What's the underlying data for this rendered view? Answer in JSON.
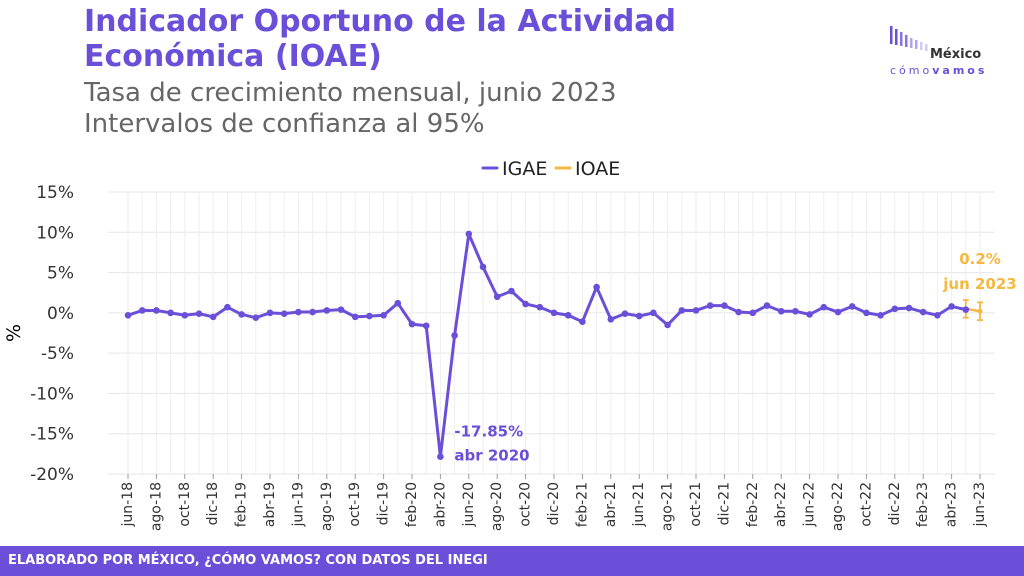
{
  "title": "Indicador Oportuno de la Actividad Económica (IOAE)",
  "subtitle_line1": "Tasa de crecimiento mensual, junio 2023",
  "subtitle_line2": "Intervalos de confianza al 95%",
  "logo": {
    "word": "México",
    "sub_light": "cómo",
    "sub_bold": "vamos"
  },
  "footer": "ELABORADO POR MÉXICO, ¿CÓMO VAMOS? CON DATOS DEL INEGI",
  "colors": {
    "igae": "#6b4fd8",
    "ioae": "#f5b942",
    "brand": "#6b4fd8"
  },
  "chart_data": {
    "type": "line",
    "legend_position": "top",
    "grid": true,
    "ylabel": "%",
    "ylim": [
      -20,
      15
    ],
    "y_ticks": [
      15,
      10,
      5,
      0,
      -5,
      -10,
      -15,
      -20
    ],
    "y_tick_labels": [
      "15%",
      "10%",
      "5%",
      "0%",
      "-5%",
      "-10%",
      "-15%",
      "-20%"
    ],
    "x_tick_labels": [
      "jun-18",
      "ago-18",
      "oct-18",
      "dic-18",
      "feb-19",
      "abr-19",
      "jun-19",
      "ago-19",
      "oct-19",
      "dic-19",
      "feb-20",
      "abr-20",
      "jun-20",
      "ago-20",
      "oct-20",
      "dic-20",
      "feb-21",
      "abr-21",
      "jun-21",
      "ago-21",
      "oct-21",
      "dic-21",
      "feb-22",
      "abr-22",
      "jun-22",
      "ago-22",
      "oct-22",
      "dic-22",
      "feb-23",
      "abr-23",
      "jun-23"
    ],
    "x_start": "2018-06",
    "series": [
      {
        "name": "IGAE",
        "months": [
          "2018-06",
          "2018-07",
          "2018-08",
          "2018-09",
          "2018-10",
          "2018-11",
          "2018-12",
          "2019-01",
          "2019-02",
          "2019-03",
          "2019-04",
          "2019-05",
          "2019-06",
          "2019-07",
          "2019-08",
          "2019-09",
          "2019-10",
          "2019-11",
          "2019-12",
          "2020-01",
          "2020-02",
          "2020-03",
          "2020-04",
          "2020-05",
          "2020-06",
          "2020-07",
          "2020-08",
          "2020-09",
          "2020-10",
          "2020-11",
          "2020-12",
          "2021-01",
          "2021-02",
          "2021-03",
          "2021-04",
          "2021-05",
          "2021-06",
          "2021-07",
          "2021-08",
          "2021-09",
          "2021-10",
          "2021-11",
          "2021-12",
          "2022-01",
          "2022-02",
          "2022-03",
          "2022-04",
          "2022-05",
          "2022-06",
          "2022-07",
          "2022-08",
          "2022-09",
          "2022-10",
          "2022-11",
          "2022-12",
          "2023-01",
          "2023-02",
          "2023-03",
          "2023-04",
          "2023-05"
        ],
        "values": [
          -0.3,
          0.3,
          0.3,
          0.0,
          -0.3,
          -0.1,
          -0.5,
          0.7,
          -0.2,
          -0.6,
          0.0,
          -0.1,
          0.1,
          0.1,
          0.3,
          0.4,
          -0.5,
          -0.4,
          -0.3,
          1.2,
          -1.4,
          -1.6,
          -17.85,
          -2.8,
          9.8,
          5.7,
          2.0,
          2.7,
          1.1,
          0.7,
          0.0,
          -0.3,
          -1.1,
          3.2,
          -0.8,
          -0.1,
          -0.4,
          0.0,
          -1.5,
          0.3,
          0.3,
          0.9,
          0.9,
          0.1,
          0.0,
          0.9,
          0.2,
          0.2,
          -0.2,
          0.7,
          0.1,
          0.8,
          0.0,
          -0.3,
          0.5,
          0.6,
          0.1,
          -0.3,
          0.8,
          0.4
        ]
      },
      {
        "name": "IOAE",
        "months": [
          "2023-05",
          "2023-06"
        ],
        "values": [
          0.5,
          0.2
        ],
        "lower": [
          -0.6,
          -0.9
        ],
        "upper": [
          1.6,
          1.3
        ]
      }
    ],
    "annotations": [
      {
        "series": "IGAE",
        "month": "2020-04",
        "line1": "-17.85%",
        "line2": "abr 2020"
      },
      {
        "series": "IOAE",
        "month": "2023-06",
        "line1": "0.2%",
        "line2": "jun 2023"
      }
    ]
  }
}
